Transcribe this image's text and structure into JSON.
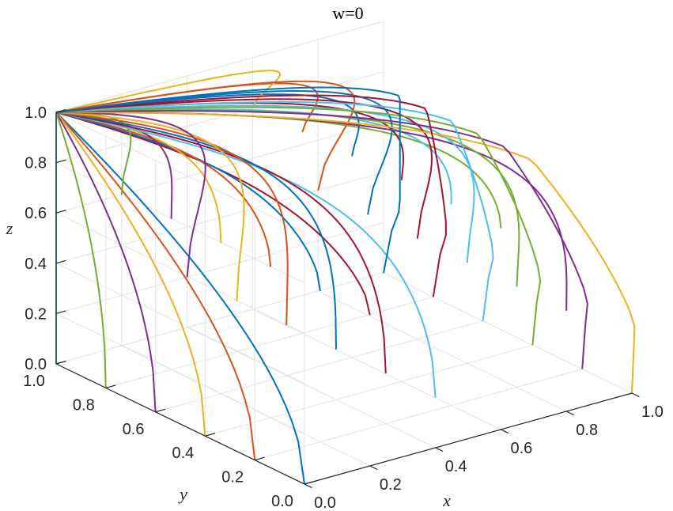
{
  "chart_data": {
    "type": "line",
    "title": "w=0",
    "xlabel": "x",
    "ylabel": "y",
    "zlabel": "z",
    "xlim": [
      0,
      1
    ],
    "ylim": [
      0,
      1
    ],
    "zlim": [
      0,
      1
    ],
    "xticks": [
      "0.0",
      "0.2",
      "0.4",
      "0.6",
      "0.8",
      "1.0"
    ],
    "yticks": [
      "0.0",
      "0.2",
      "0.4",
      "0.6",
      "0.8",
      "1.0"
    ],
    "zticks": [
      "0.0",
      "0.2",
      "0.4",
      "0.6",
      "0.8",
      "1.0"
    ],
    "grid": true,
    "converge_point": [
      0,
      1,
      1
    ],
    "curve_end_point_z": [
      0.0,
      0.1,
      0.2,
      0.3,
      0.4,
      0.5,
      0.6,
      0.7,
      0.8,
      0.9
    ],
    "colors": [
      "#0072BD",
      "#D95319",
      "#EDB120",
      "#7E2F8E",
      "#77AC30",
      "#4DBEEE",
      "#A2142F"
    ],
    "series": [
      {
        "x0": 0.0,
        "y0": 0.0,
        "z0": 0.0
      },
      {
        "x0": 0.2,
        "y0": 0.0,
        "z0": 0.0
      },
      {
        "x0": 0.4,
        "y0": 0.0,
        "z0": 0.0
      },
      {
        "x0": 0.6,
        "y0": 0.0,
        "z0": 0.0
      },
      {
        "x0": 0.8,
        "y0": 0.0,
        "z0": 0.0
      },
      {
        "x0": 1.0,
        "y0": 0.0,
        "z0": 0.0
      }
    ]
  }
}
